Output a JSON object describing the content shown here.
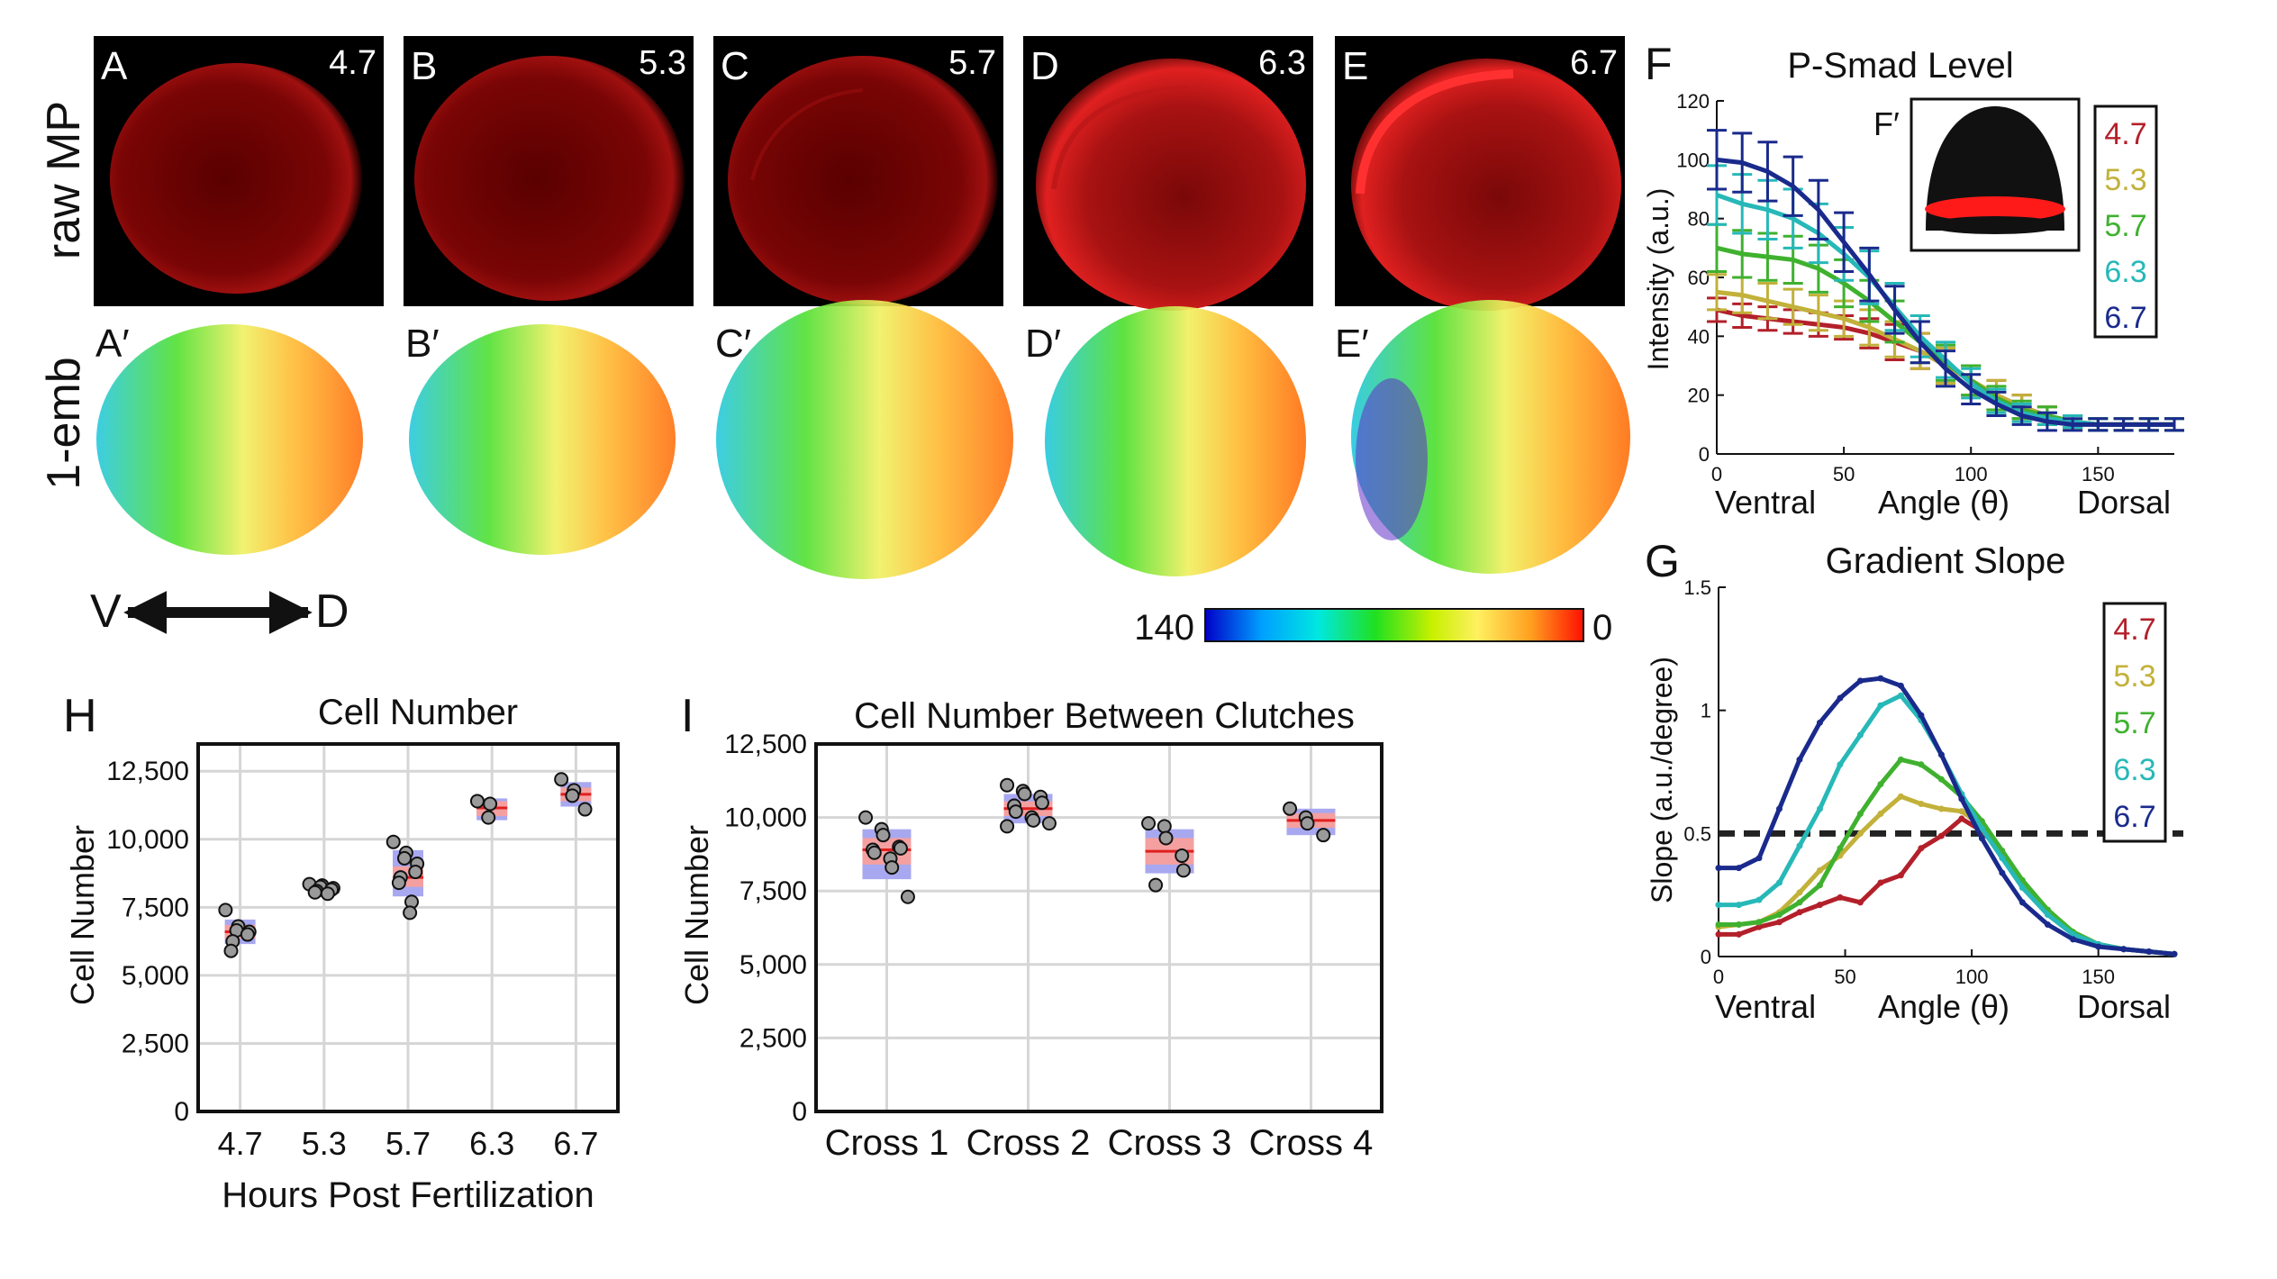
{
  "panels": {
    "raw": [
      {
        "letter": "A",
        "time": "4.7"
      },
      {
        "letter": "B",
        "time": "5.3"
      },
      {
        "letter": "C",
        "time": "5.7"
      },
      {
        "letter": "D",
        "time": "6.3"
      },
      {
        "letter": "E",
        "time": "6.7"
      }
    ],
    "emb": [
      {
        "letter": "A′"
      },
      {
        "letter": "B′"
      },
      {
        "letter": "C′"
      },
      {
        "letter": "D′"
      },
      {
        "letter": "E′"
      }
    ],
    "row_label_raw": "raw MP",
    "row_label_emb": "1-emb",
    "axis_v": "V",
    "axis_d": "D",
    "colorbar": {
      "min_label": "140",
      "max_label": "0"
    }
  },
  "colors": {
    "t47": "#b3202a",
    "t53": "#c2b13a",
    "t57": "#1f8a6a",
    "t63": "#2ab8d8",
    "t67": "#1a2a8c",
    "green_curve": "#3fb12f",
    "cyan_curve": "#27b8b8",
    "red_ring": "#ff1a1a",
    "box_red": "#f4a0a0",
    "box_blue": "#a0a0f0"
  },
  "chart_data": [
    {
      "id": "F",
      "type": "line",
      "letter": "F",
      "inset_letter": "F′",
      "title": "P-Smad Level",
      "xlabel": "Angle (θ)",
      "xlabel_left": "Ventral",
      "xlabel_right": "Dorsal",
      "ylabel": "Intensity (a.u.)",
      "xlim": [
        0,
        180
      ],
      "ylim": [
        0,
        120
      ],
      "xticks": [
        "0",
        "50",
        "100",
        "150"
      ],
      "xtick_values": [
        0,
        50,
        100,
        150
      ],
      "yticks": [
        "0",
        "20",
        "40",
        "60",
        "80",
        "100",
        "120"
      ],
      "ytick_values": [
        0,
        20,
        40,
        60,
        80,
        100,
        120
      ],
      "legend": [
        "4.7",
        "5.3",
        "5.7",
        "6.3",
        "6.7"
      ],
      "x": [
        0,
        10,
        20,
        30,
        40,
        50,
        60,
        70,
        80,
        90,
        100,
        110,
        120,
        130,
        140,
        150,
        160,
        170,
        180
      ],
      "series": [
        {
          "name": "4.7",
          "color": "#b3202a",
          "values": [
            49,
            47,
            46,
            45,
            44,
            43,
            41,
            38,
            35,
            30,
            25,
            20,
            16,
            13,
            11,
            10,
            10,
            10,
            10
          ],
          "err": [
            4,
            4,
            4,
            4,
            4,
            4,
            5,
            6,
            6,
            6,
            5,
            5,
            4,
            3,
            2,
            2,
            2,
            2,
            2
          ]
        },
        {
          "name": "5.3",
          "color": "#c2b13a",
          "values": [
            55,
            54,
            52,
            50,
            48,
            46,
            43,
            39,
            35,
            30,
            25,
            20,
            16,
            13,
            11,
            10,
            10,
            10,
            10
          ],
          "err": [
            6,
            6,
            6,
            6,
            6,
            6,
            6,
            6,
            6,
            6,
            5,
            5,
            4,
            3,
            2,
            2,
            2,
            2,
            2
          ]
        },
        {
          "name": "5.7",
          "color": "#3fb12f",
          "values": [
            70,
            68,
            67,
            66,
            63,
            58,
            52,
            45,
            38,
            31,
            25,
            19,
            15,
            13,
            11,
            10,
            10,
            10,
            10
          ],
          "err": [
            8,
            8,
            8,
            8,
            8,
            8,
            7,
            7,
            7,
            6,
            5,
            4,
            3,
            3,
            2,
            2,
            2,
            2,
            2
          ]
        },
        {
          "name": "6.3",
          "color": "#27b8b8",
          "values": [
            88,
            85,
            83,
            80,
            75,
            68,
            60,
            50,
            40,
            32,
            24,
            18,
            14,
            12,
            11,
            10,
            10,
            10,
            10
          ],
          "err": [
            10,
            10,
            10,
            10,
            10,
            9,
            9,
            8,
            7,
            6,
            5,
            4,
            3,
            2,
            2,
            2,
            2,
            2,
            2
          ]
        },
        {
          "name": "6.7",
          "color": "#1a2a8c",
          "values": [
            100,
            99,
            96,
            91,
            83,
            72,
            61,
            49,
            38,
            29,
            22,
            17,
            13,
            11,
            10,
            10,
            10,
            10,
            10
          ],
          "err": [
            10,
            10,
            10,
            10,
            10,
            10,
            9,
            8,
            7,
            6,
            5,
            4,
            3,
            3,
            2,
            2,
            2,
            2,
            2
          ]
        }
      ]
    },
    {
      "id": "G",
      "type": "line",
      "letter": "G",
      "title": "Gradient Slope",
      "xlabel": "Angle (θ)",
      "xlabel_left": "Ventral",
      "xlabel_right": "Dorsal",
      "ylabel": "Slope (a.u./degree)",
      "xlim": [
        0,
        180
      ],
      "ylim": [
        0,
        1.5
      ],
      "xticks": [
        "0",
        "50",
        "100",
        "150"
      ],
      "xtick_values": [
        0,
        50,
        100,
        150
      ],
      "yticks": [
        "0",
        "0.5",
        "1",
        "1.5"
      ],
      "ytick_values": [
        0,
        0.5,
        1,
        1.5
      ],
      "threshold": 0.5,
      "legend": [
        "4.7",
        "5.3",
        "5.7",
        "6.3",
        "6.7"
      ],
      "series": [
        {
          "name": "4.7",
          "color": "#b3202a",
          "x": [
            0,
            8,
            16,
            24,
            32,
            40,
            48,
            56,
            64,
            72,
            80,
            88,
            96,
            104,
            112,
            120,
            130,
            140,
            150,
            160,
            170,
            180
          ],
          "values": [
            0.09,
            0.09,
            0.12,
            0.14,
            0.18,
            0.21,
            0.24,
            0.22,
            0.3,
            0.33,
            0.44,
            0.49,
            0.56,
            0.51,
            0.42,
            0.3,
            0.18,
            0.09,
            0.05,
            0.03,
            0.02,
            0.01
          ]
        },
        {
          "name": "5.3",
          "color": "#c2b13a",
          "x": [
            0,
            8,
            16,
            24,
            32,
            40,
            48,
            56,
            64,
            72,
            80,
            88,
            96,
            104,
            112,
            120,
            130,
            140,
            150,
            160,
            170,
            180
          ],
          "values": [
            0.12,
            0.13,
            0.14,
            0.18,
            0.26,
            0.35,
            0.41,
            0.5,
            0.58,
            0.65,
            0.62,
            0.6,
            0.59,
            0.53,
            0.42,
            0.3,
            0.18,
            0.09,
            0.05,
            0.03,
            0.02,
            0.01
          ]
        },
        {
          "name": "5.7",
          "color": "#3fb12f",
          "x": [
            0,
            8,
            16,
            24,
            32,
            40,
            48,
            56,
            64,
            72,
            80,
            88,
            96,
            104,
            112,
            120,
            130,
            140,
            150,
            160,
            170,
            180
          ],
          "values": [
            0.13,
            0.13,
            0.14,
            0.17,
            0.22,
            0.29,
            0.44,
            0.58,
            0.7,
            0.8,
            0.78,
            0.72,
            0.65,
            0.55,
            0.43,
            0.31,
            0.19,
            0.1,
            0.05,
            0.03,
            0.02,
            0.01
          ]
        },
        {
          "name": "6.3",
          "color": "#27b8b8",
          "x": [
            0,
            8,
            16,
            24,
            32,
            40,
            48,
            56,
            64,
            72,
            80,
            88,
            96,
            104,
            112,
            120,
            130,
            140,
            150,
            160,
            170,
            180
          ],
          "values": [
            0.21,
            0.21,
            0.23,
            0.3,
            0.45,
            0.6,
            0.78,
            0.9,
            1.02,
            1.06,
            0.96,
            0.82,
            0.66,
            0.52,
            0.4,
            0.28,
            0.17,
            0.09,
            0.05,
            0.03,
            0.02,
            0.01
          ]
        },
        {
          "name": "6.7",
          "color": "#1a2a8c",
          "x": [
            0,
            8,
            16,
            24,
            32,
            40,
            48,
            56,
            64,
            72,
            80,
            88,
            96,
            104,
            112,
            120,
            130,
            140,
            150,
            160,
            170,
            180
          ],
          "values": [
            0.36,
            0.36,
            0.4,
            0.6,
            0.8,
            0.95,
            1.05,
            1.12,
            1.13,
            1.1,
            0.98,
            0.82,
            0.64,
            0.48,
            0.34,
            0.22,
            0.13,
            0.07,
            0.04,
            0.03,
            0.02,
            0.01
          ]
        }
      ]
    },
    {
      "id": "H",
      "type": "scatter",
      "letter": "H",
      "title": "Cell Number",
      "xlabel": "Hours Post Fertilization",
      "ylabel": "Cell Number",
      "categories": [
        "4.7",
        "5.3",
        "5.7",
        "6.3",
        "6.7"
      ],
      "ylim": [
        0,
        13500
      ],
      "yticks": [
        "0",
        "2,500",
        "5,000",
        "7,500",
        "10,000",
        "12,500"
      ],
      "ytick_values": [
        0,
        2500,
        5000,
        7500,
        10000,
        12500
      ],
      "grid": true,
      "boxes": [
        {
          "mean": 6600,
          "sd_lo": 6150,
          "sd_hi": 7050,
          "se_lo": 6350,
          "se_hi": 6850
        },
        {
          "mean": 8150,
          "sd_lo": 8000,
          "sd_hi": 8300,
          "se_lo": 8050,
          "se_hi": 8250
        },
        {
          "mean": 8600,
          "sd_lo": 7900,
          "sd_hi": 9600,
          "se_lo": 8250,
          "se_hi": 9000
        },
        {
          "mean": 11150,
          "sd_lo": 10700,
          "sd_hi": 11500,
          "se_lo": 10850,
          "se_hi": 11400
        },
        {
          "mean": 11650,
          "sd_lo": 11200,
          "sd_hi": 12100,
          "se_lo": 11400,
          "se_hi": 11900
        }
      ],
      "points": [
        [
          7400,
          6800,
          6650,
          6600,
          6500,
          6250,
          5900
        ],
        [
          8350,
          8300,
          8250,
          8200,
          8150,
          8100,
          8050,
          8000
        ],
        [
          9900,
          9500,
          9300,
          9100,
          8800,
          8600,
          8400,
          7700,
          7300
        ],
        [
          11400,
          11300,
          10800
        ],
        [
          12200,
          11800,
          11600,
          11100
        ]
      ]
    },
    {
      "id": "I",
      "type": "scatter",
      "letter": "I",
      "title": "Cell Number Between Clutches",
      "xlabel": "",
      "ylabel": "Cell Number",
      "categories": [
        "Cross 1",
        "Cross 2",
        "Cross 3",
        "Cross 4"
      ],
      "ylim": [
        0,
        12500
      ],
      "yticks": [
        "0",
        "2,500",
        "5,000",
        "7,500",
        "10,000",
        "12,500"
      ],
      "ytick_values": [
        0,
        2500,
        5000,
        7500,
        10000,
        12500
      ],
      "grid": true,
      "boxes": [
        {
          "mean": 8900,
          "sd_lo": 7900,
          "sd_hi": 9600,
          "se_lo": 8400,
          "se_hi": 9300
        },
        {
          "mean": 10300,
          "sd_lo": 9800,
          "sd_hi": 10800,
          "se_lo": 10050,
          "se_hi": 10550
        },
        {
          "mean": 8850,
          "sd_lo": 8100,
          "sd_hi": 9600,
          "se_lo": 8400,
          "se_hi": 9300
        },
        {
          "mean": 9900,
          "sd_lo": 9400,
          "sd_hi": 10300,
          "se_lo": 9650,
          "se_hi": 10150
        }
      ],
      "points": [
        [
          10000,
          9600,
          9400,
          9000,
          8950,
          8900,
          8800,
          8600,
          8300,
          7300
        ],
        [
          11100,
          10900,
          10800,
          10700,
          10500,
          10400,
          10200,
          10000,
          9900,
          9800,
          9700
        ],
        [
          9800,
          9700,
          9300,
          8700,
          8200,
          7700
        ],
        [
          10300,
          10000,
          9800,
          9400
        ]
      ]
    }
  ]
}
